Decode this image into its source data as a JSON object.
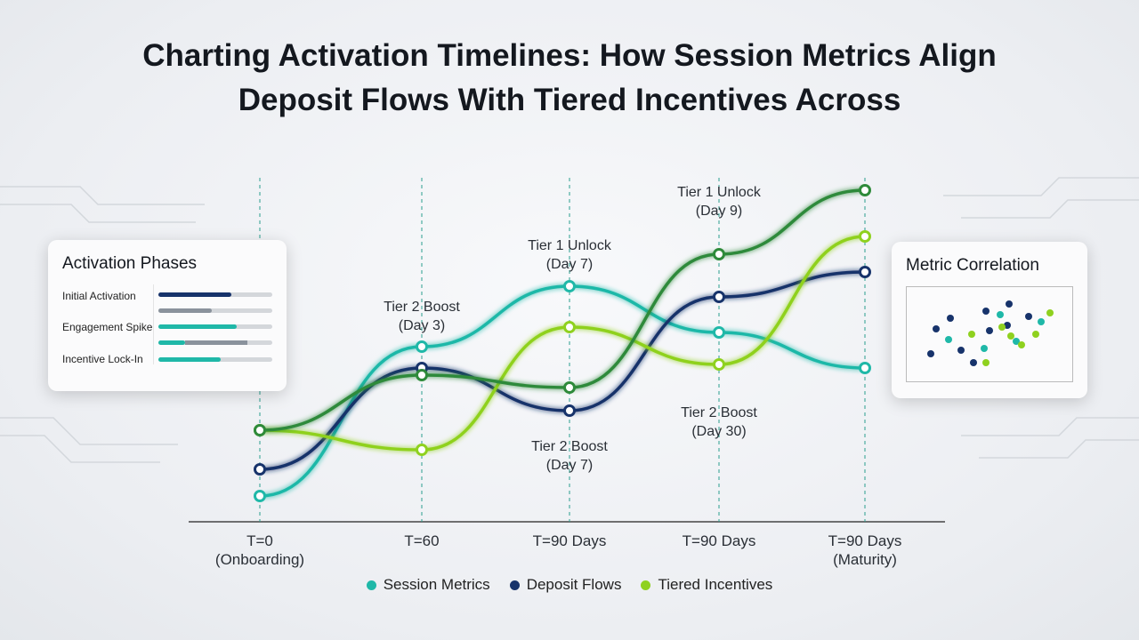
{
  "chart_data": {
    "type": "line",
    "title": "Charting Activation Timelines: How Session Metrics Align Deposit Flows With Tiered Incentives Across",
    "categories": [
      "T=0 (Onboarding)",
      "T=60",
      "T=90 Days",
      "T=90 Days",
      "T=90 Days (Maturity)"
    ],
    "ylim": [
      0,
      100
    ],
    "series": [
      {
        "name": "Session Metrics",
        "color": "#1fb8a8",
        "values": [
          8,
          50,
          67,
          54,
          44
        ]
      },
      {
        "name": "Deposit Flows",
        "color": "#17336b",
        "values": [
          15.5,
          44,
          32,
          64,
          71
        ]
      },
      {
        "name": "Tiered Incentives",
        "color": "#8fd11f",
        "values": [
          26.5,
          21,
          55.5,
          45,
          81
        ]
      },
      {
        "color": "#2e8a3a",
        "values": [
          26.5,
          42,
          38.5,
          76,
          94
        ]
      }
    ],
    "annotations": [
      "Tier 2 Boost (Day 3)",
      "Tier 1 Unlock (Day 7)",
      "Tier 2 Boost (Day 7)",
      "Tier 1 Unlock (Day 9)",
      "Tier 2 Boost (Day 30)"
    ]
  },
  "left_panel": {
    "title": "Activation Phases",
    "items": [
      "Initial Activation",
      "Engagement Spike",
      "Incentive Lock-In"
    ]
  },
  "right_panel": {
    "title": "Metric Correlation"
  }
}
